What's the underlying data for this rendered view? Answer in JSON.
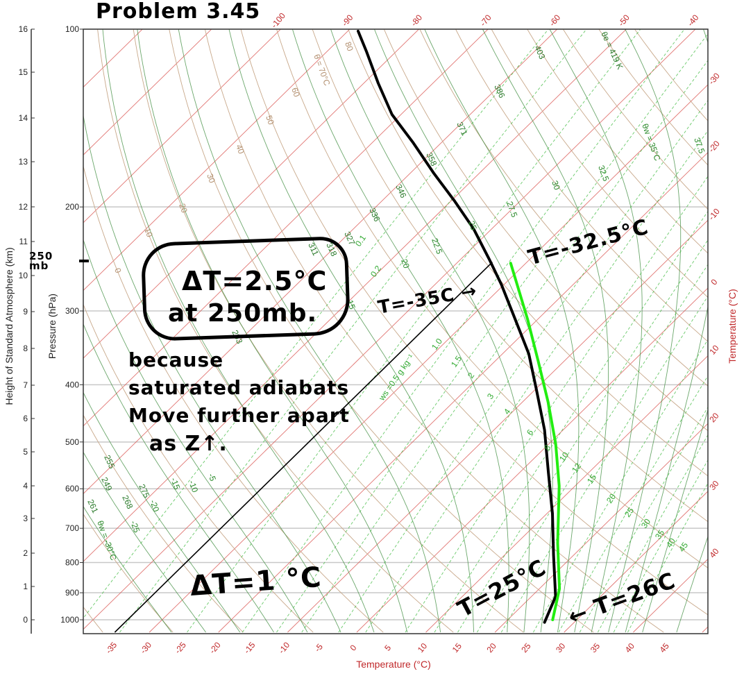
{
  "chart_data": {
    "type": "line",
    "diagram": "skew-T log-p",
    "xlabel": "Temperature (°C)",
    "ylabel": "Pressure (hPa)",
    "ylabel_secondary": "Height of Standard Atmosphere (km)",
    "right_label": "Temperature (°C)",
    "ylim": [
      1050,
      100
    ],
    "y_scale": "log",
    "pressure_ticks": [
      100,
      200,
      300,
      400,
      500,
      600,
      700,
      800,
      900,
      1000
    ],
    "height_ticks": [
      0,
      1,
      2,
      3,
      4,
      5,
      6,
      7,
      8,
      9,
      10,
      11,
      12,
      13,
      14,
      15,
      16
    ],
    "bottom_temperature_ticks": [
      -35,
      -30,
      -25,
      -20,
      -15,
      -10,
      -5,
      0,
      5,
      10,
      15,
      20,
      25,
      30,
      35,
      40,
      45
    ],
    "top_temperature_ticks": [
      -100,
      -90,
      -80,
      -70,
      -60,
      -50,
      -40
    ],
    "right_temperature_ticks": [
      -30,
      -20,
      -10,
      0,
      10,
      20,
      30,
      40
    ],
    "grid": true,
    "colors": {
      "isotherm": "#d9534f",
      "dry_adiabat": "#c8a88a",
      "saturated_adiabat": "#3a8a3a",
      "mixing_ratio": "#44bb44",
      "axis_text_red": "#c0282a",
      "sounding": "#000000",
      "parcel": "#22ee11"
    },
    "background_lines": {
      "isotherms_step_c": 10,
      "dry_adiabat_theta_c": [
        -40,
        -30,
        -20,
        -10,
        0,
        10,
        20,
        30,
        40,
        50,
        60,
        70,
        80,
        90,
        100,
        110,
        120,
        130,
        140,
        150,
        160
      ],
      "saturated_adiabat_theta_w_c": [
        -30,
        -25,
        -20,
        -15,
        -10,
        -5,
        0,
        5,
        10,
        15,
        20,
        22.5,
        25,
        27.5,
        30,
        32.5,
        35,
        37.5,
        40,
        45
      ],
      "mixing_ratio_g_kg": [
        0.1,
        0.2,
        0.5,
        1.0,
        1.5,
        2,
        3,
        4,
        6,
        8,
        10,
        12,
        15,
        20,
        25,
        30,
        35,
        40,
        45
      ]
    },
    "line_labels": {
      "dry_adiabat": [
        "80",
        "θ = 70°C",
        "60",
        "50",
        "40",
        "30",
        "20",
        "10",
        "0"
      ],
      "theta_e": [
        "403",
        "θe = 419 K",
        "386",
        "371",
        "358",
        "346",
        "336",
        "327",
        "318",
        "311",
        "293",
        "275",
        "268",
        "261",
        "255",
        "249"
      ],
      "theta_w": [
        "37.5",
        "θw = 35°C",
        "32.5",
        "30",
        "27.5",
        "25",
        "22.5",
        "20",
        "15",
        "-5",
        "-10",
        "-15",
        "-20",
        "-25",
        "θw = -30°C"
      ],
      "mixing_ratio": [
        "0.1",
        "0.2",
        "ws =0.5 g kg⁻¹",
        "1.0",
        "1.5",
        "2",
        "3",
        "4",
        "6",
        "8",
        "10",
        "12",
        "15",
        "20",
        "25",
        "30",
        "35",
        "40",
        "45"
      ]
    },
    "series": [
      {
        "role": "sounding",
        "points": [
          [
            100.8,
            -88.5
          ],
          [
            109.3,
            -84.2
          ],
          [
            123.5,
            -77.9
          ],
          [
            139.5,
            -71.3
          ],
          [
            155.4,
            -64.2
          ],
          [
            175.6,
            -56.5
          ],
          [
            195.7,
            -49.4
          ],
          [
            217.9,
            -42.6
          ],
          [
            246,
            -35.7
          ],
          [
            270.6,
            -30.4
          ],
          [
            309.7,
            -23.3
          ],
          [
            354.6,
            -16.2
          ],
          [
            406,
            -10.0
          ],
          [
            477,
            -2.7
          ],
          [
            562.6,
            4.1
          ],
          [
            661,
            10.8
          ],
          [
            777.4,
            17.1
          ],
          [
            913.6,
            23.5
          ],
          [
            1010,
            25.7
          ]
        ]
      },
      {
        "role": "saturated-parcel",
        "points": [
          [
            1000,
            26.5
          ],
          [
            886,
            22.9
          ],
          [
            741.5,
            15.9
          ],
          [
            593.6,
            7.7
          ],
          [
            504,
            1.0
          ],
          [
            428.8,
            -6.2
          ],
          [
            364.5,
            -13.8
          ],
          [
            309.7,
            -21.5
          ],
          [
            278,
            -26.8
          ],
          [
            249,
            -32.2
          ]
        ]
      }
    ],
    "highlighted_isotherm_c": -35
  },
  "annotations": {
    "title": "Problem 3.45",
    "level_mark": "250 mb",
    "boxed_line1": "ΔT=2.5°C",
    "boxed_line2": "at 250mb.",
    "explain1": "because",
    "explain2": "saturated adiabats",
    "explain3": "Move further apart",
    "explain4": "as Z↑.",
    "t_env_250": "T=-35C →",
    "t_parcel_250": "T=-32.5°C",
    "dt_surface": "ΔT=1 °C",
    "t_env_sfc": "T=25°C",
    "t_parcel_sfc": "← T=26C"
  }
}
